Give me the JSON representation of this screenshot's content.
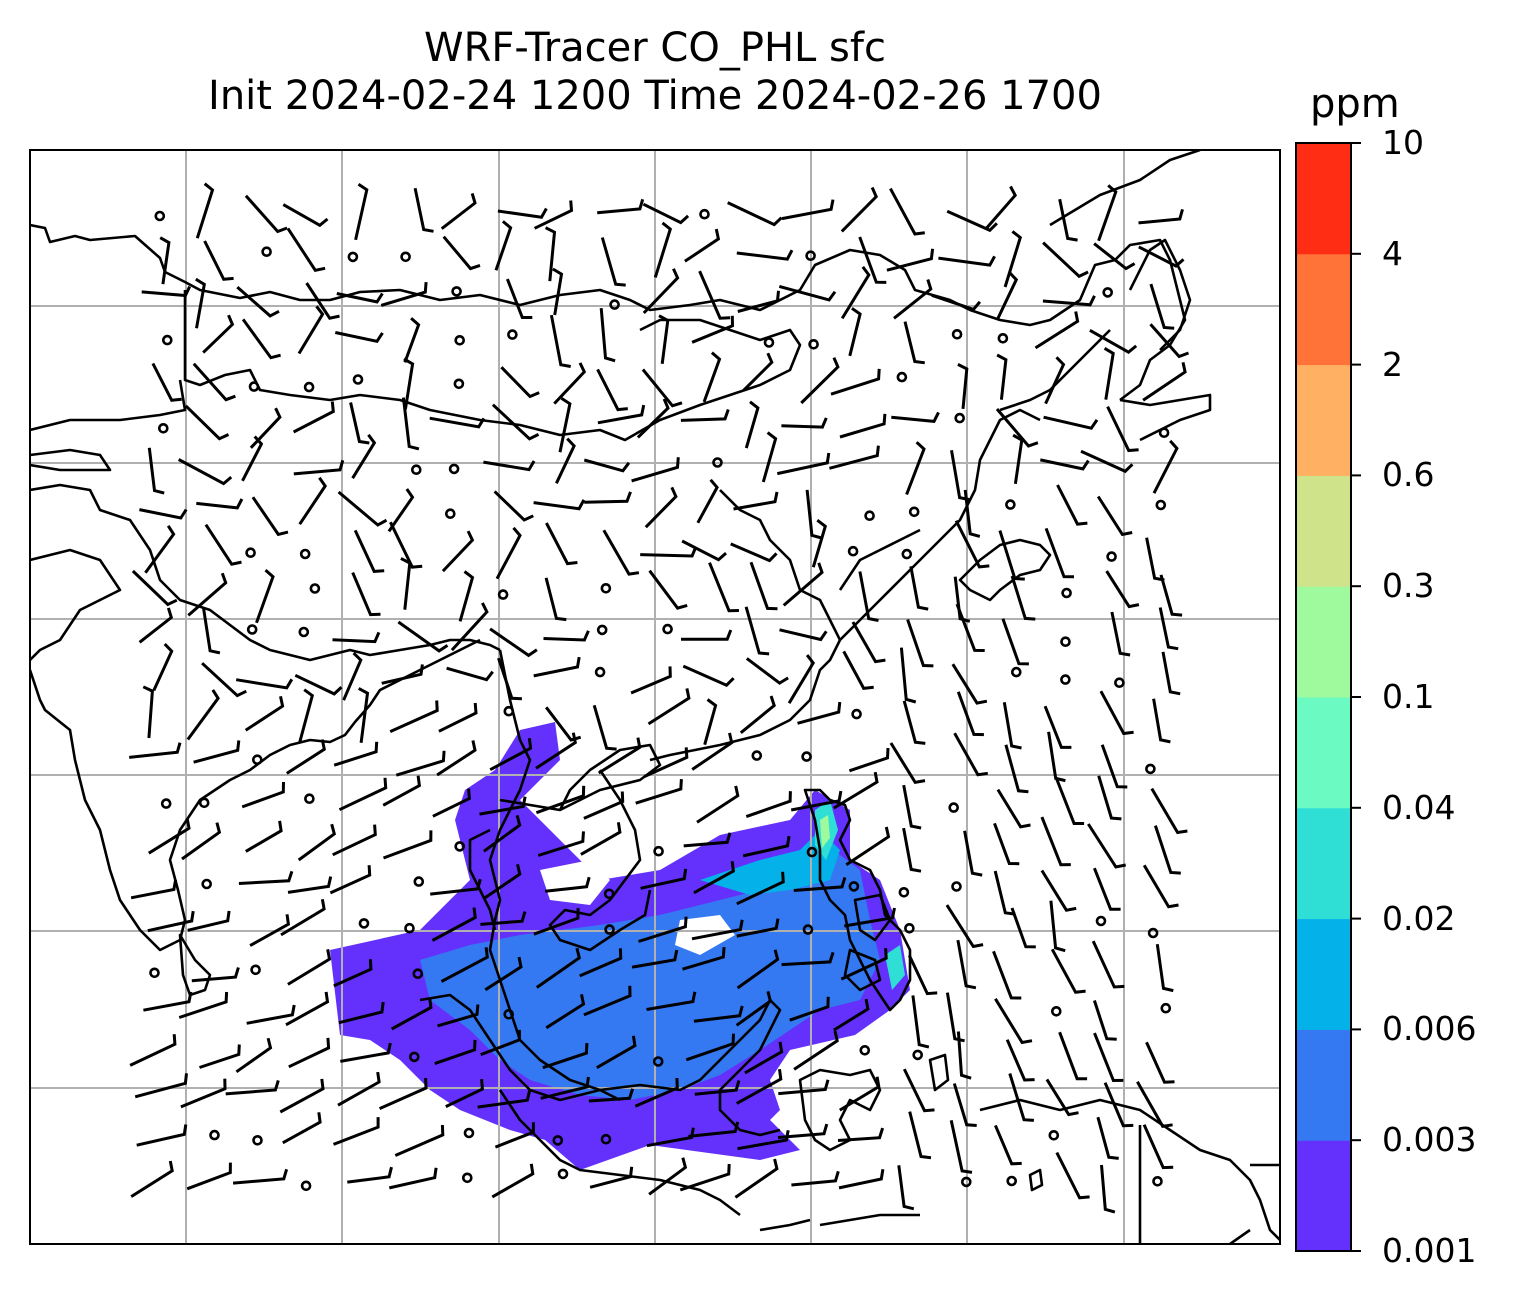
{
  "title": {
    "line1": "WRF-Tracer CO_PHL sfc",
    "line2": "Init 2024-02-24 1200 Time 2024-02-26 1700"
  },
  "colorbar": {
    "unit": "ppm",
    "levels": [
      "0.001",
      "0.003",
      "0.006",
      "0.02",
      "0.04",
      "0.1",
      "0.3",
      "0.6",
      "2",
      "4",
      "10"
    ],
    "colors": [
      "#6331fb",
      "#3479f2",
      "#05b1e9",
      "#2fdfd6",
      "#6bfac1",
      "#9efa9c",
      "#cfe38a",
      "#ffb062",
      "#ff7338",
      "#ff2d14"
    ]
  },
  "map": {
    "coastline_color": "#000000",
    "gridline_color": "#b0b0b0",
    "wind_barbs": "black"
  }
}
